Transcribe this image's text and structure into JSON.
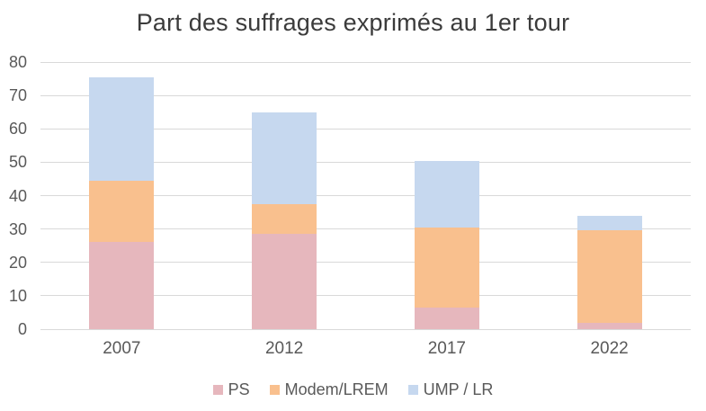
{
  "chart_data": {
    "type": "bar",
    "stacked": true,
    "title": "Part des suffrages exprimés au 1er tour",
    "categories": [
      "2007",
      "2012",
      "2017",
      "2022"
    ],
    "series": [
      {
        "name": "PS",
        "color": "#e6b7bd",
        "values": [
          26,
          28.5,
          6.5,
          2
        ]
      },
      {
        "name": "Modem/LREM",
        "color": "#f9c08e",
        "values": [
          18.5,
          9,
          24,
          27.5
        ]
      },
      {
        "name": "UMP / LR",
        "color": "#c6d8ef",
        "values": [
          31,
          27.5,
          20,
          4.5
        ]
      }
    ],
    "stack_totals": [
      75.5,
      65,
      50.5,
      34
    ],
    "ylim": [
      0,
      80
    ],
    "yticks": [
      0,
      10,
      20,
      30,
      40,
      50,
      60,
      70,
      80
    ],
    "grid": true,
    "legend_position": "bottom"
  },
  "colors": {
    "background": "#ffffff",
    "title_text": "#3b3b3b",
    "axis_text": "#595959",
    "gridline": "#d9d9d9"
  }
}
